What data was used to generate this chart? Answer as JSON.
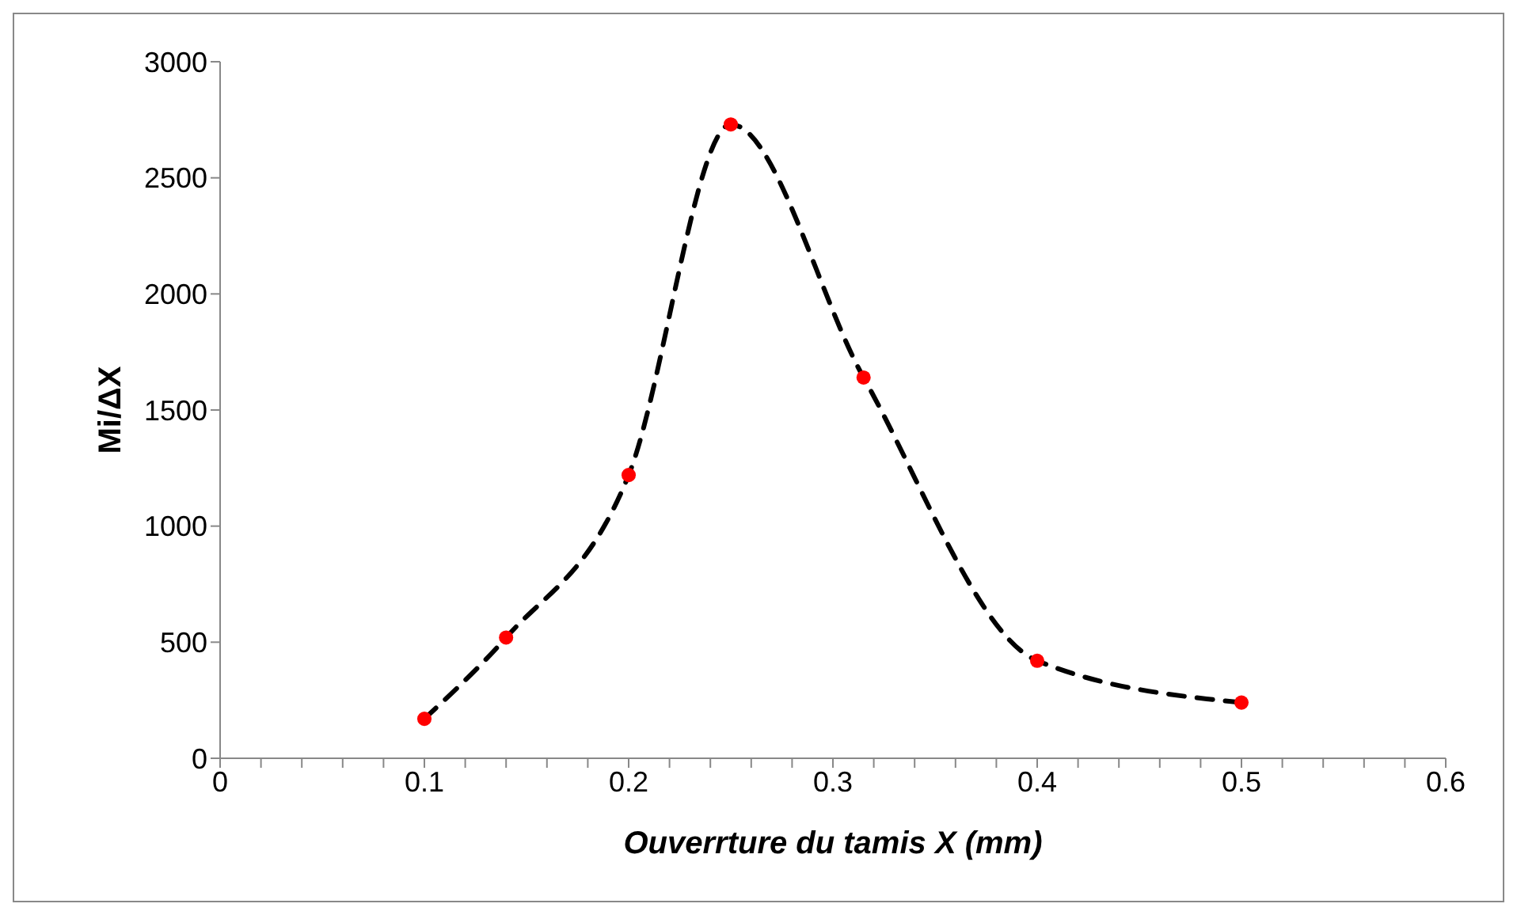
{
  "chart_data": {
    "type": "scatter",
    "xlabel": "Ouverrture du tamis X (mm)",
    "ylabel": "Mi/ΔX",
    "x": [
      0.1,
      0.14,
      0.2,
      0.25,
      0.315,
      0.4,
      0.5
    ],
    "series": [
      {
        "type": "line",
        "color": "#000000",
        "line_style": "dashed",
        "marker": "none",
        "values": [
          170,
          520,
          1220,
          2730,
          1640,
          420,
          240
        ]
      },
      {
        "color": "#ff0000",
        "marker": "circle",
        "values": [
          170,
          520,
          1220,
          2730,
          1640,
          420,
          240
        ]
      }
    ],
    "xlim": [
      0,
      0.6
    ],
    "xticks": [
      0,
      {
        "value": 0.02,
        "label": null
      },
      {
        "value": 0.04,
        "label": null
      },
      {
        "value": 0.06,
        "label": null
      },
      {
        "value": 0.08,
        "label": null
      },
      0.1,
      {
        "value": 0.12,
        "label": null
      },
      {
        "value": 0.14,
        "label": null
      },
      {
        "value": 0.16,
        "label": null
      },
      {
        "value": 0.18,
        "label": null
      },
      0.2,
      {
        "value": 0.22,
        "label": null
      },
      {
        "value": 0.24,
        "label": null
      },
      {
        "value": 0.26,
        "label": null
      },
      {
        "value": 0.28,
        "label": null
      },
      0.3,
      {
        "value": 0.32,
        "label": null
      },
      {
        "value": 0.34,
        "label": null
      },
      {
        "value": 0.36,
        "label": null
      },
      {
        "value": 0.38,
        "label": null
      },
      0.4,
      {
        "value": 0.42,
        "label": null
      },
      {
        "value": 0.44,
        "label": null
      },
      {
        "value": 0.46,
        "label": null
      },
      {
        "value": 0.48,
        "label": null
      },
      0.5,
      {
        "value": 0.52,
        "label": null
      },
      {
        "value": 0.54,
        "label": null
      },
      {
        "value": 0.56,
        "label": null
      },
      {
        "value": 0.58,
        "label": null
      },
      0.6
    ],
    "ylim": [
      0,
      3000
    ],
    "yticks": [
      0,
      500,
      1000,
      1500,
      2000,
      2500,
      3000
    ],
    "grid": false,
    "legend": false
  }
}
